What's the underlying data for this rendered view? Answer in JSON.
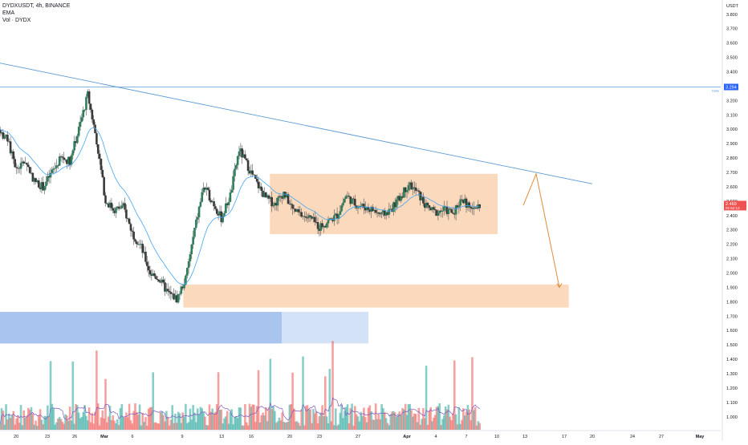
{
  "legend": {
    "title": "DYDXUSDT, 4h, BINANCE",
    "ema": "EMA",
    "vol": "Vol · DYDX"
  },
  "price_scale": {
    "currency": "USDT",
    "ticks": [
      "3.800",
      "3.700",
      "3.600",
      "3.500",
      "3.400",
      "3.300",
      "3.200",
      "3.100",
      "3.000",
      "2.900",
      "2.800",
      "2.700",
      "2.600",
      "2.500",
      "2.400",
      "2.300",
      "2.200",
      "2.100",
      "2.000",
      "1.900",
      "1.800",
      "1.700",
      "1.600",
      "1.500",
      "1.400",
      "1.300",
      "1.200",
      "1.100",
      "1.000"
    ]
  },
  "time_scale": {
    "ticks": [
      "20",
      "23",
      "26",
      "Mar",
      "6",
      "9",
      "13",
      "16",
      "20",
      "23",
      "27",
      "Apr",
      "4",
      "7",
      "10",
      "13",
      "17",
      "20",
      "24",
      "27",
      "May"
    ]
  },
  "markers": {
    "horizontal_line_value": "3.294",
    "horizontal_line_note": "Daily",
    "last_price": "2.469",
    "last_price_sub": "01:52:13"
  },
  "colors": {
    "up": "#26a69a",
    "down": "#ef5350",
    "candle_up_body": "#2e7d5b",
    "candle_down_body": "#3a3a3a",
    "trendline": "#5b9bd5",
    "ema": "#42a5f5",
    "zone_fill": "#f9c9a0",
    "projection": "#e08a3c",
    "blue_block": "#a8c4ef",
    "blue_block_light": "#d4e2f8",
    "last_price_badge": "#ef5350",
    "level_badge": "#2962ff"
  },
  "chart_data": {
    "type": "candlestick",
    "symbol": "DYDXUSDT",
    "interval": "4h",
    "exchange": "BINANCE",
    "ylim": [
      0.96,
      3.86
    ],
    "close_series_approx": [
      {
        "x": "Feb 18",
        "y": 3.0
      },
      {
        "x": "Feb 19",
        "y": 2.92
      },
      {
        "x": "Feb 20",
        "y": 2.72
      },
      {
        "x": "Feb 21",
        "y": 2.78
      },
      {
        "x": "Feb 22",
        "y": 2.64
      },
      {
        "x": "Feb 23",
        "y": 2.6
      },
      {
        "x": "Feb 24",
        "y": 2.7
      },
      {
        "x": "Feb 25",
        "y": 2.8
      },
      {
        "x": "Feb 26",
        "y": 2.78
      },
      {
        "x": "Feb 27",
        "y": 3.0
      },
      {
        "x": "Feb 28",
        "y": 3.24
      },
      {
        "x": "Mar 1",
        "y": 2.92
      },
      {
        "x": "Mar 2",
        "y": 2.5
      },
      {
        "x": "Mar 3",
        "y": 2.44
      },
      {
        "x": "Mar 4",
        "y": 2.46
      },
      {
        "x": "Mar 5",
        "y": 2.28
      },
      {
        "x": "Mar 6",
        "y": 2.18
      },
      {
        "x": "Mar 7",
        "y": 2.0
      },
      {
        "x": "Mar 8",
        "y": 1.96
      },
      {
        "x": "Mar 9",
        "y": 1.86
      },
      {
        "x": "Mar 10",
        "y": 1.82
      },
      {
        "x": "Mar 11",
        "y": 1.96
      },
      {
        "x": "Mar 12",
        "y": 2.3
      },
      {
        "x": "Mar 13",
        "y": 2.6
      },
      {
        "x": "Mar 14",
        "y": 2.5
      },
      {
        "x": "Mar 15",
        "y": 2.38
      },
      {
        "x": "Mar 16",
        "y": 2.54
      },
      {
        "x": "Mar 17",
        "y": 2.86
      },
      {
        "x": "Mar 18",
        "y": 2.74
      },
      {
        "x": "Mar 19",
        "y": 2.62
      },
      {
        "x": "Mar 20",
        "y": 2.52
      },
      {
        "x": "Mar 21",
        "y": 2.48
      },
      {
        "x": "Mar 22",
        "y": 2.56
      },
      {
        "x": "Mar 23",
        "y": 2.44
      },
      {
        "x": "Mar 24",
        "y": 2.4
      },
      {
        "x": "Mar 25",
        "y": 2.38
      },
      {
        "x": "Mar 26",
        "y": 2.32
      },
      {
        "x": "Mar 27",
        "y": 2.36
      },
      {
        "x": "Mar 28",
        "y": 2.4
      },
      {
        "x": "Mar 29",
        "y": 2.54
      },
      {
        "x": "Mar 30",
        "y": 2.48
      },
      {
        "x": "Mar 31",
        "y": 2.46
      },
      {
        "x": "Apr 1",
        "y": 2.44
      },
      {
        "x": "Apr 2",
        "y": 2.4
      },
      {
        "x": "Apr 3",
        "y": 2.44
      },
      {
        "x": "Apr 4",
        "y": 2.52
      },
      {
        "x": "Apr 5",
        "y": 2.62
      },
      {
        "x": "Apr 6",
        "y": 2.56
      },
      {
        "x": "Apr 7",
        "y": 2.46
      },
      {
        "x": "Apr 8",
        "y": 2.42
      },
      {
        "x": "Apr 9",
        "y": 2.44
      },
      {
        "x": "Apr 10",
        "y": 2.42
      },
      {
        "x": "Apr 11",
        "y": 2.52
      },
      {
        "x": "Apr 12",
        "y": 2.44
      },
      {
        "x": "Apr 13",
        "y": 2.47
      }
    ],
    "annotations": {
      "trendline": [
        {
          "x": "Feb 18",
          "y": 3.46
        },
        {
          "x": "Apr 21",
          "y": 2.62
        }
      ],
      "range_zone": {
        "x_from": "Mar 20",
        "x_to": "Apr 15",
        "y_from": 2.27,
        "y_to": 2.69
      },
      "target_zone": {
        "x_from": "Mar 11",
        "x_to": "Apr 23",
        "y_from": 1.76,
        "y_to": 1.92
      },
      "projection_path": [
        {
          "x": "Apr 13",
          "y": 2.47
        },
        {
          "x": "Apr 14",
          "y": 2.69
        },
        {
          "x": "Apr 17",
          "y": 1.9
        }
      ],
      "horizontal_level": 3.294
    }
  }
}
